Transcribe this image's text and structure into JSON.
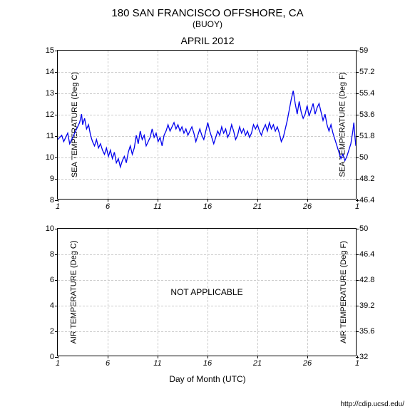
{
  "header": {
    "title": "180 SAN FRANCISCO OFFSHORE, CA",
    "subtitle": "(BUOY)",
    "date": "APRIL 2012"
  },
  "chart1": {
    "type": "line",
    "y_left_label": "SEA TEMPERATURE (Deg C)",
    "y_right_label": "SEA TEMPERATURE (Deg F)",
    "xlim": [
      1,
      31
    ],
    "ylim_left": [
      8,
      15
    ],
    "ylim_right": [
      46.4,
      59
    ],
    "y_left_ticks": [
      8,
      9,
      10,
      11,
      12,
      13,
      14,
      15
    ],
    "y_right_ticks": [
      46.4,
      48.2,
      50,
      51.8,
      53.6,
      55.4,
      57.2,
      59
    ],
    "x_ticks": [
      1,
      6,
      11,
      16,
      21,
      26,
      1
    ],
    "x_tick_positions": [
      0,
      0.1667,
      0.3333,
      0.5,
      0.6667,
      0.8333,
      1.0
    ],
    "line_color": "#0000ee",
    "line_width": 1.3,
    "grid_color": "#cccccc",
    "background_color": "#ffffff",
    "data": [
      [
        1,
        10.8
      ],
      [
        1.2,
        10.9
      ],
      [
        1.4,
        11.0
      ],
      [
        1.6,
        10.7
      ],
      [
        1.8,
        10.9
      ],
      [
        2,
        11.1
      ],
      [
        2.2,
        10.6
      ],
      [
        2.4,
        10.8
      ],
      [
        2.6,
        11.0
      ],
      [
        2.8,
        11.2
      ],
      [
        3,
        11.4
      ],
      [
        3.2,
        11.6
      ],
      [
        3.4,
        12.0
      ],
      [
        3.5,
        11.5
      ],
      [
        3.7,
        11.8
      ],
      [
        3.9,
        11.3
      ],
      [
        4.1,
        11.5
      ],
      [
        4.3,
        11.0
      ],
      [
        4.5,
        10.7
      ],
      [
        4.7,
        10.5
      ],
      [
        4.9,
        10.8
      ],
      [
        5.1,
        10.4
      ],
      [
        5.3,
        10.6
      ],
      [
        5.5,
        10.3
      ],
      [
        5.7,
        10.1
      ],
      [
        5.9,
        10.4
      ],
      [
        6.1,
        10.0
      ],
      [
        6.3,
        10.3
      ],
      [
        6.5,
        9.9
      ],
      [
        6.7,
        10.2
      ],
      [
        6.9,
        9.7
      ],
      [
        7.1,
        9.9
      ],
      [
        7.3,
        9.5
      ],
      [
        7.5,
        9.8
      ],
      [
        7.7,
        10.0
      ],
      [
        7.9,
        9.7
      ],
      [
        8.1,
        10.2
      ],
      [
        8.3,
        10.5
      ],
      [
        8.5,
        10.1
      ],
      [
        8.7,
        10.4
      ],
      [
        8.9,
        11.0
      ],
      [
        9.1,
        10.6
      ],
      [
        9.3,
        11.2
      ],
      [
        9.5,
        10.8
      ],
      [
        9.7,
        11.0
      ],
      [
        9.9,
        10.5
      ],
      [
        10.1,
        10.7
      ],
      [
        10.3,
        10.9
      ],
      [
        10.5,
        11.3
      ],
      [
        10.7,
        10.9
      ],
      [
        10.9,
        11.1
      ],
      [
        11.1,
        10.7
      ],
      [
        11.3,
        10.9
      ],
      [
        11.5,
        10.5
      ],
      [
        11.7,
        11.0
      ],
      [
        11.9,
        11.2
      ],
      [
        12.1,
        11.5
      ],
      [
        12.3,
        11.2
      ],
      [
        12.5,
        11.4
      ],
      [
        12.7,
        11.6
      ],
      [
        12.9,
        11.3
      ],
      [
        13.1,
        11.5
      ],
      [
        13.3,
        11.2
      ],
      [
        13.5,
        11.4
      ],
      [
        13.7,
        11.1
      ],
      [
        13.9,
        11.3
      ],
      [
        14.1,
        11.0
      ],
      [
        14.3,
        11.2
      ],
      [
        14.5,
        11.4
      ],
      [
        14.7,
        11.1
      ],
      [
        14.9,
        10.7
      ],
      [
        15.1,
        11.0
      ],
      [
        15.3,
        11.3
      ],
      [
        15.5,
        11.0
      ],
      [
        15.7,
        10.8
      ],
      [
        15.9,
        11.2
      ],
      [
        16.1,
        11.6
      ],
      [
        16.3,
        11.2
      ],
      [
        16.5,
        10.9
      ],
      [
        16.7,
        10.6
      ],
      [
        16.9,
        10.9
      ],
      [
        17.1,
        11.2
      ],
      [
        17.3,
        11.0
      ],
      [
        17.5,
        11.4
      ],
      [
        17.7,
        11.1
      ],
      [
        17.9,
        11.3
      ],
      [
        18.1,
        10.9
      ],
      [
        18.3,
        11.1
      ],
      [
        18.5,
        11.5
      ],
      [
        18.7,
        11.2
      ],
      [
        18.9,
        10.8
      ],
      [
        19.1,
        11.0
      ],
      [
        19.3,
        11.4
      ],
      [
        19.5,
        11.1
      ],
      [
        19.7,
        11.3
      ],
      [
        19.9,
        11.0
      ],
      [
        20.1,
        11.2
      ],
      [
        20.3,
        10.9
      ],
      [
        20.5,
        11.1
      ],
      [
        20.7,
        11.5
      ],
      [
        20.9,
        11.3
      ],
      [
        21.1,
        11.5
      ],
      [
        21.3,
        11.2
      ],
      [
        21.5,
        11.0
      ],
      [
        21.7,
        11.3
      ],
      [
        21.9,
        11.5
      ],
      [
        22.1,
        11.2
      ],
      [
        22.3,
        11.6
      ],
      [
        22.5,
        11.3
      ],
      [
        22.7,
        11.5
      ],
      [
        22.9,
        11.2
      ],
      [
        23.1,
        11.4
      ],
      [
        23.3,
        11.1
      ],
      [
        23.5,
        10.7
      ],
      [
        23.7,
        10.9
      ],
      [
        23.9,
        11.3
      ],
      [
        24.1,
        11.7
      ],
      [
        24.3,
        12.2
      ],
      [
        24.5,
        12.7
      ],
      [
        24.7,
        13.1
      ],
      [
        24.9,
        12.5
      ],
      [
        25.1,
        12.0
      ],
      [
        25.3,
        12.6
      ],
      [
        25.5,
        12.1
      ],
      [
        25.7,
        11.8
      ],
      [
        25.9,
        12.0
      ],
      [
        26.1,
        12.4
      ],
      [
        26.3,
        11.9
      ],
      [
        26.5,
        12.2
      ],
      [
        26.7,
        12.5
      ],
      [
        26.9,
        12.0
      ],
      [
        27.1,
        12.3
      ],
      [
        27.3,
        12.5
      ],
      [
        27.5,
        12.1
      ],
      [
        27.7,
        11.7
      ],
      [
        27.9,
        12.0
      ],
      [
        28.1,
        11.5
      ],
      [
        28.3,
        11.2
      ],
      [
        28.5,
        11.5
      ],
      [
        28.7,
        11.1
      ],
      [
        28.9,
        10.8
      ],
      [
        29.1,
        10.5
      ],
      [
        29.3,
        10.2
      ],
      [
        29.5,
        9.9
      ],
      [
        29.7,
        10.1
      ],
      [
        29.9,
        9.8
      ],
      [
        30.1,
        10.0
      ],
      [
        30.3,
        10.3
      ],
      [
        30.5,
        10.6
      ],
      [
        30.7,
        11.2
      ],
      [
        30.8,
        11.6
      ],
      [
        30.9,
        11.0
      ],
      [
        31,
        10.5
      ]
    ]
  },
  "chart2": {
    "type": "empty",
    "y_left_label": "AIR TEMPERATURE (Deg C)",
    "y_right_label": "AIR TEMPERATURE (Deg F)",
    "xlim": [
      1,
      31
    ],
    "ylim_left": [
      0,
      10
    ],
    "ylim_right": [
      32,
      50
    ],
    "y_left_ticks": [
      0,
      2,
      4,
      6,
      8,
      10
    ],
    "y_right_ticks": [
      32,
      35.6,
      39.2,
      42.8,
      46.4,
      50
    ],
    "x_ticks": [
      1,
      6,
      11,
      16,
      21,
      26,
      1
    ],
    "x_tick_positions": [
      0,
      0.1667,
      0.3333,
      0.5,
      0.6667,
      0.8333,
      1.0
    ],
    "message": "NOT APPLICABLE",
    "grid_color": "#cccccc",
    "background_color": "#ffffff"
  },
  "x_axis_label": "Day of Month (UTC)",
  "credit": "http://cdip.ucsd.edu/"
}
